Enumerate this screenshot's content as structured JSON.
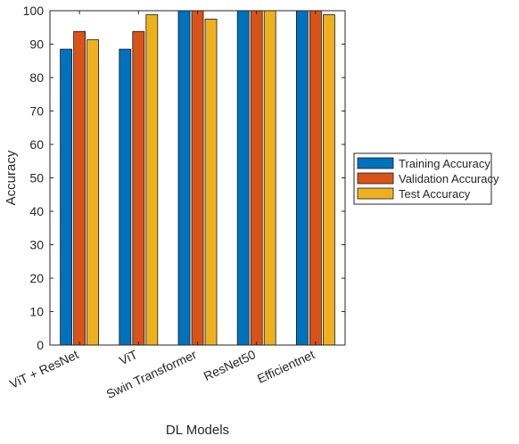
{
  "chart_data": {
    "type": "bar",
    "title": "",
    "xlabel": "DL Models",
    "ylabel": "Accuracy",
    "ylim": [
      0,
      100
    ],
    "yticks": [
      0,
      10,
      20,
      30,
      40,
      50,
      60,
      70,
      80,
      90,
      100
    ],
    "grid": false,
    "legend_position": "outside-right",
    "categories": [
      "ViT + ResNet",
      "ViT",
      "Swin Transformer",
      "ResNet50",
      "Efficientnet"
    ],
    "series": [
      {
        "name": "Training Accuracy",
        "color": "#0072BD",
        "values": [
          88.5,
          88.5,
          100,
          100,
          100
        ]
      },
      {
        "name": "Validation Accuracy",
        "color": "#D95319",
        "values": [
          93.8,
          93.8,
          100,
          100,
          100
        ]
      },
      {
        "name": "Test Accuracy",
        "color": "#EDB120",
        "values": [
          91.3,
          98.8,
          97.5,
          100,
          98.8
        ]
      }
    ]
  }
}
